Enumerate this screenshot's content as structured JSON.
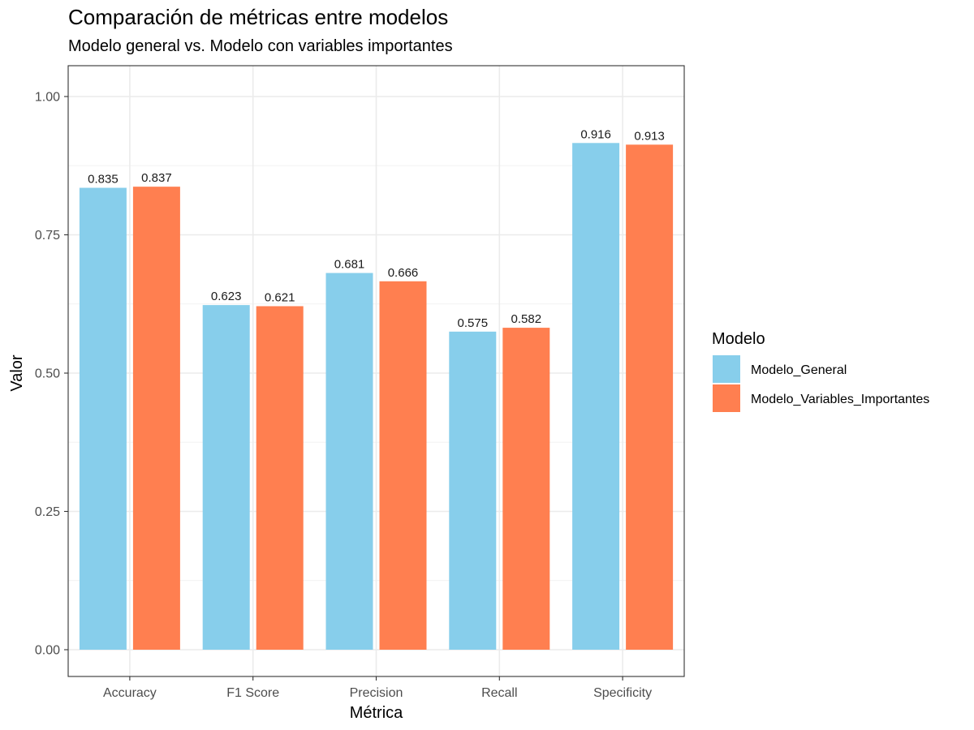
{
  "chart_data": {
    "type": "bar",
    "title": "Comparación de métricas entre modelos",
    "subtitle": "Modelo general vs. Modelo con variables importantes",
    "xlabel": "Métrica",
    "ylabel": "Valor",
    "ylim": [
      0,
      1.05
    ],
    "yticks": [
      0.0,
      0.25,
      0.5,
      0.75,
      1.0
    ],
    "ytick_labels": [
      "0.00",
      "0.25",
      "0.50",
      "0.75",
      "1.00"
    ],
    "grid": true,
    "legend_position": "right",
    "legend_title": "Modelo",
    "categories": [
      "Accuracy",
      "F1 Score",
      "Precision",
      "Recall",
      "Specificity"
    ],
    "series": [
      {
        "name": "Modelo_General",
        "color": "#87CEEB",
        "values": [
          0.835,
          0.623,
          0.681,
          0.575,
          0.916
        ],
        "labels": [
          "0.835",
          "0.623",
          "0.681",
          "0.575",
          "0.916"
        ]
      },
      {
        "name": "Modelo_Variables_Importantes",
        "color": "#FF7F50",
        "values": [
          0.837,
          0.621,
          0.666,
          0.582,
          0.913
        ],
        "labels": [
          "0.837",
          "0.621",
          "0.666",
          "0.582",
          "0.913"
        ]
      }
    ]
  }
}
